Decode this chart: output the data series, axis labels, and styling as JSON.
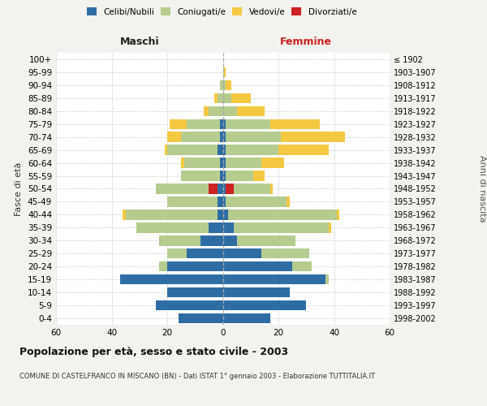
{
  "age_groups": [
    "0-4",
    "5-9",
    "10-14",
    "15-19",
    "20-24",
    "25-29",
    "30-34",
    "35-39",
    "40-44",
    "45-49",
    "50-54",
    "55-59",
    "60-64",
    "65-69",
    "70-74",
    "75-79",
    "80-84",
    "85-89",
    "90-94",
    "95-99",
    "100+"
  ],
  "birth_years": [
    "1998-2002",
    "1993-1997",
    "1988-1992",
    "1983-1987",
    "1978-1982",
    "1973-1977",
    "1968-1972",
    "1963-1967",
    "1958-1962",
    "1953-1957",
    "1948-1952",
    "1943-1947",
    "1938-1942",
    "1933-1937",
    "1928-1932",
    "1923-1927",
    "1918-1922",
    "1913-1917",
    "1908-1912",
    "1903-1907",
    "≤ 1902"
  ],
  "male_celibe": [
    16,
    24,
    20,
    37,
    20,
    13,
    8,
    5,
    2,
    2,
    2,
    1,
    1,
    2,
    1,
    1,
    0,
    0,
    0,
    0,
    0
  ],
  "male_coniugato": [
    0,
    0,
    0,
    0,
    3,
    7,
    15,
    26,
    33,
    18,
    19,
    14,
    13,
    18,
    14,
    12,
    5,
    2,
    1,
    0,
    0
  ],
  "male_vedovo": [
    0,
    0,
    0,
    0,
    0,
    0,
    0,
    0,
    1,
    0,
    0,
    0,
    1,
    1,
    5,
    6,
    2,
    1,
    0,
    0,
    0
  ],
  "male_divorziato": [
    0,
    0,
    0,
    0,
    0,
    0,
    0,
    0,
    0,
    0,
    3,
    0,
    0,
    0,
    0,
    0,
    0,
    0,
    0,
    0,
    0
  ],
  "fem_nubile": [
    17,
    30,
    24,
    37,
    25,
    14,
    5,
    4,
    2,
    1,
    1,
    1,
    1,
    1,
    1,
    1,
    0,
    0,
    0,
    0,
    0
  ],
  "fem_coniugata": [
    0,
    0,
    0,
    1,
    7,
    17,
    21,
    34,
    39,
    22,
    13,
    10,
    13,
    19,
    20,
    16,
    5,
    3,
    1,
    0,
    0
  ],
  "fem_vedova": [
    0,
    0,
    0,
    0,
    0,
    0,
    0,
    1,
    1,
    1,
    1,
    4,
    8,
    18,
    23,
    18,
    10,
    7,
    2,
    1,
    0
  ],
  "fem_divorziata": [
    0,
    0,
    0,
    0,
    0,
    0,
    0,
    0,
    0,
    0,
    3,
    0,
    0,
    0,
    0,
    0,
    0,
    0,
    0,
    0,
    0
  ],
  "c_celibe": "#2E6DA4",
  "c_coniugato": "#B5CC8E",
  "c_vedovo": "#F5C842",
  "c_divorziato": "#CC2222",
  "xlim": 60,
  "title": "Popolazione per età, sesso e stato civile - 2003",
  "subtitle": "COMUNE DI CASTELFRANCO IN MISCANO (BN) - Dati ISTAT 1° gennaio 2003 - Elaborazione TUTTITALIA.IT",
  "ylabel_left": "Fasce di età",
  "ylabel_right": "Anni di nascita",
  "label_maschi": "Maschi",
  "label_femmine": "Femmine",
  "legend_labels": [
    "Celibi/Nubili",
    "Coniugati/e",
    "Vedovi/e",
    "Divorziati/e"
  ],
  "bg_color": "#f2f2ee",
  "plot_bg": "#ffffff"
}
